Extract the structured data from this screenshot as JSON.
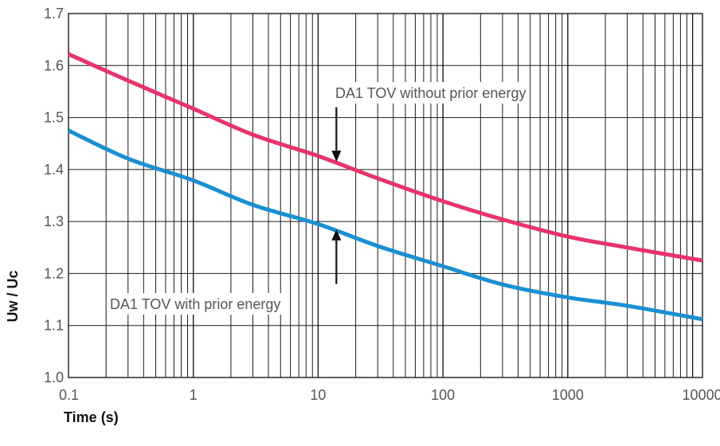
{
  "chart_data": {
    "type": "line",
    "title": "",
    "xlabel": "Time (s)",
    "ylabel": "Uw / Uc",
    "x_scale": "log",
    "xlim": [
      0.1,
      12000
    ],
    "ylim": [
      1.0,
      1.7
    ],
    "grid": true,
    "x_ticks": [
      0.1,
      1,
      10,
      100,
      1000,
      10000
    ],
    "x_tick_labels": [
      "0.1",
      "1",
      "10",
      "100",
      "1000",
      "10000"
    ],
    "y_ticks": [
      1.0,
      1.1,
      1.2,
      1.3,
      1.4,
      1.5,
      1.6,
      1.7
    ],
    "y_tick_labels": [
      "1.0",
      "1.1",
      "1.2",
      "1.3",
      "1.4",
      "1.5",
      "1.6",
      "1.7"
    ],
    "series": [
      {
        "name": "DA1 TOV without prior energy",
        "color": "#e8336b",
        "x": [
          0.1,
          0.3,
          1,
          3,
          10,
          30,
          100,
          300,
          1000,
          3000,
          12000
        ],
        "y": [
          1.622,
          1.571,
          1.517,
          1.467,
          1.426,
          1.383,
          1.339,
          1.304,
          1.271,
          1.25,
          1.225
        ]
      },
      {
        "name": "DA1 TOV with prior energy",
        "color": "#1b8fd2",
        "x": [
          0.1,
          0.3,
          1,
          3,
          10,
          30,
          100,
          300,
          1000,
          3000,
          12000
        ],
        "y": [
          1.475,
          1.421,
          1.379,
          1.332,
          1.295,
          1.253,
          1.214,
          1.179,
          1.154,
          1.138,
          1.112
        ]
      }
    ],
    "annotations": [
      {
        "text": "DA1 TOV without prior energy",
        "arrow_direction": "down",
        "arrow_x": 14,
        "arrow_y_from": 1.52,
        "arrow_y_to": 1.415
      },
      {
        "text": "DA1 TOV with prior energy",
        "arrow_direction": "up",
        "arrow_x": 14,
        "arrow_y_from": 1.18,
        "arrow_y_to": 1.285
      }
    ]
  }
}
